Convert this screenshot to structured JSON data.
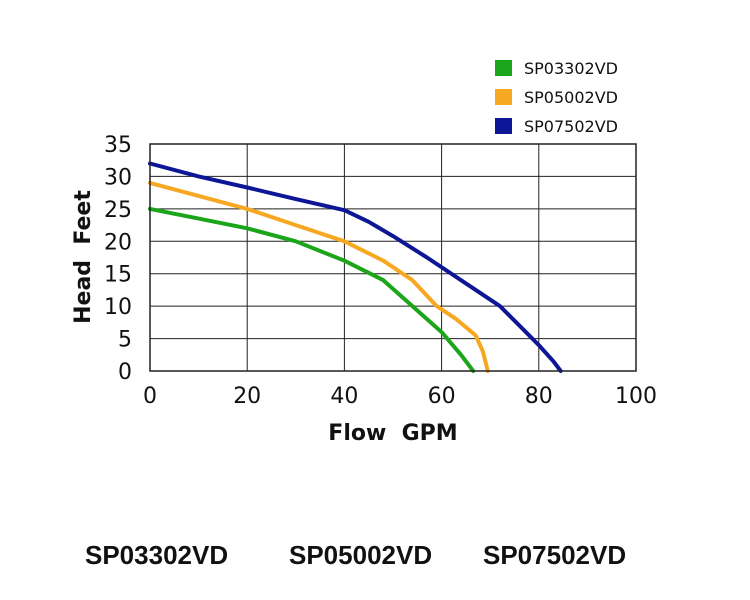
{
  "chart_data": {
    "type": "line",
    "title": "",
    "xlabel": "Flow  GPM",
    "ylabel": "Head  Feet",
    "xlim": [
      0,
      100
    ],
    "ylim": [
      0,
      35
    ],
    "x_ticks": [
      "0",
      "20",
      "40",
      "60",
      "80",
      "100"
    ],
    "y_ticks": [
      "0",
      "5",
      "10",
      "15",
      "20",
      "25",
      "30",
      "35"
    ],
    "grid": true,
    "legend_position": "top-right",
    "series": [
      {
        "name": "SP03302VD",
        "color": "#1aa51a",
        "x": [
          0,
          10,
          20,
          30,
          40,
          48,
          54,
          60,
          64,
          66.5
        ],
        "y": [
          25,
          23.5,
          22,
          20,
          17,
          14,
          10,
          6,
          2.5,
          0
        ]
      },
      {
        "name": "SP05002VD",
        "color": "#f7a823",
        "x": [
          0,
          10,
          20,
          30,
          40,
          48,
          54,
          59,
          63,
          67,
          68.5,
          69.5
        ],
        "y": [
          29,
          27,
          25,
          22.5,
          20,
          17,
          14,
          10,
          8,
          5.5,
          3,
          0
        ]
      },
      {
        "name": "SP07502VD",
        "color": "#0d1696",
        "x": [
          0,
          10,
          20,
          30,
          40,
          45,
          50,
          57,
          65,
          72,
          76,
          80,
          83,
          84.5
        ],
        "y": [
          32,
          30,
          28.3,
          26.5,
          24.8,
          23,
          20.8,
          17.5,
          13.5,
          10,
          7,
          4,
          1.5,
          0
        ]
      }
    ]
  },
  "models": [
    "SP03302VD",
    "SP05002VD",
    "SP07502VD"
  ]
}
